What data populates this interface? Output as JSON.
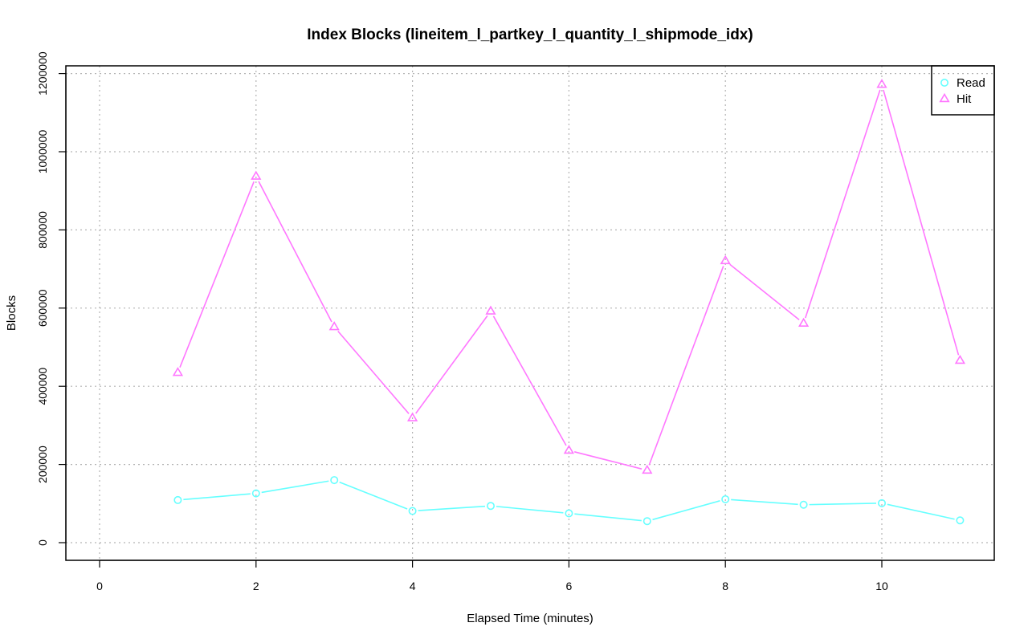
{
  "chart_data": {
    "type": "line",
    "title": "Index Blocks (lineitem_l_partkey_l_quantity_l_shipmode_idx)",
    "xlabel": "Elapsed Time (minutes)",
    "ylabel": "Blocks",
    "xlim": [
      0,
      11
    ],
    "ylim": [
      -40000,
      1220000
    ],
    "x_ticks": [
      0,
      2,
      4,
      6,
      8,
      10
    ],
    "x_tick_labels": [
      "0",
      "2",
      "4",
      "6",
      "8",
      "10"
    ],
    "y_ticks": [
      0,
      200000,
      400000,
      600000,
      800000,
      1000000,
      1200000
    ],
    "y_tick_labels": [
      "0",
      "200000",
      "400000",
      "600000",
      "800000",
      "1000000",
      "1200000"
    ],
    "grid": true,
    "legend_position": "top-right",
    "x": [
      1,
      2,
      3,
      4,
      5,
      6,
      7,
      8,
      9,
      10,
      11
    ],
    "series": [
      {
        "name": "Read",
        "color": "#66ffff",
        "marker": "circle",
        "values": [
          109000,
          126000,
          160000,
          81000,
          94000,
          75000,
          55000,
          111000,
          97000,
          101000,
          57000
        ]
      },
      {
        "name": "Hit",
        "color": "#ff77ff",
        "marker": "triangle",
        "values": [
          435000,
          937000,
          552000,
          319000,
          592000,
          236000,
          185000,
          721000,
          561000,
          1172000,
          466000
        ]
      }
    ]
  }
}
